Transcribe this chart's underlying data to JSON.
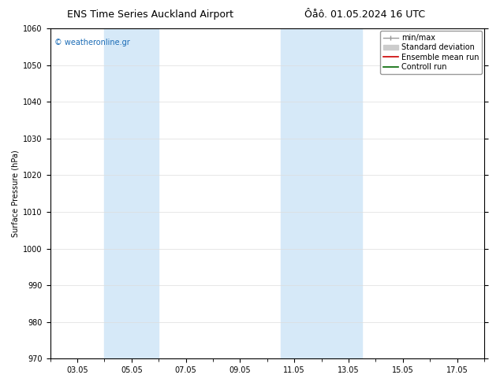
{
  "title_left": "ENS Time Series Auckland Airport",
  "title_right": "Ôåô. 01.05.2024 16 UTC",
  "ylabel": "Surface Pressure (hPa)",
  "ylim": [
    970,
    1060
  ],
  "yticks": [
    970,
    980,
    990,
    1000,
    1010,
    1020,
    1030,
    1040,
    1050,
    1060
  ],
  "xtick_labels": [
    "03.05",
    "05.05",
    "07.05",
    "09.05",
    "11.05",
    "13.05",
    "15.05",
    "17.05"
  ],
  "xtick_positions": [
    2.0,
    4.0,
    6.0,
    8.0,
    10.0,
    12.0,
    14.0,
    16.0
  ],
  "xlim": [
    1.0,
    17.0
  ],
  "shaded_bands": [
    {
      "x_start": 3.0,
      "x_end": 5.0
    },
    {
      "x_start": 9.5,
      "x_end": 12.5
    }
  ],
  "shaded_color": "#d6e9f8",
  "watermark_text": "© weatheronline.gr",
  "watermark_color": "#1a6bb5",
  "legend_entries": [
    {
      "label": "min/max",
      "color": "#999999",
      "lw": 1.0
    },
    {
      "label": "Standard deviation",
      "color": "#cccccc",
      "lw": 8
    },
    {
      "label": "Ensemble mean run",
      "color": "#cc0000",
      "lw": 1.2
    },
    {
      "label": "Controll run",
      "color": "#006600",
      "lw": 1.2
    }
  ],
  "background_color": "#ffffff",
  "plot_bg_color": "#ffffff",
  "font_size_title": 9,
  "font_size_legend": 7,
  "font_size_axis_label": 7,
  "font_size_tick": 7,
  "font_size_watermark": 7,
  "grid_color": "#dddddd",
  "tick_color": "#000000",
  "spine_color": "#000000"
}
